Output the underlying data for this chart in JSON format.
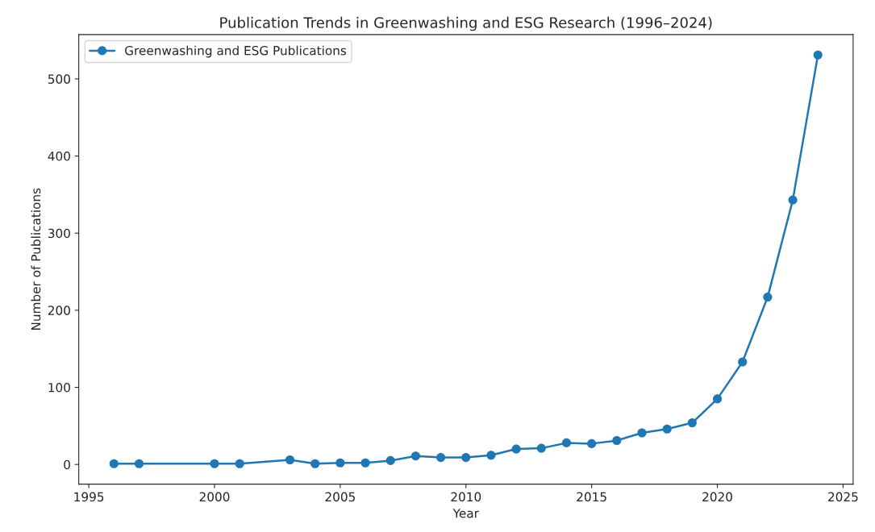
{
  "chart_data": {
    "type": "line",
    "title": "Publication Trends in Greenwashing and ESG Research (1996–2024)",
    "xlabel": "Year",
    "ylabel": "Number of Publications",
    "x": [
      1996,
      1997,
      2000,
      2001,
      2003,
      2004,
      2005,
      2006,
      2007,
      2008,
      2009,
      2010,
      2011,
      2012,
      2013,
      2014,
      2015,
      2016,
      2017,
      2018,
      2019,
      2020,
      2021,
      2022,
      2023,
      2024
    ],
    "series": [
      {
        "name": "Greenwashing and ESG Publications",
        "color": "#1f77b4",
        "values": [
          1,
          1,
          1,
          1,
          6,
          1,
          2,
          2,
          5,
          11,
          9,
          9,
          12,
          20,
          21,
          28,
          27,
          31,
          41,
          46,
          54,
          85,
          133,
          217,
          343,
          531
        ]
      }
    ],
    "xlim": [
      1994.6,
      2025.4
    ],
    "ylim": [
      -25.5,
      557.5
    ],
    "xticks": [
      1995,
      2000,
      2005,
      2010,
      2015,
      2020,
      2025
    ],
    "yticks": [
      0,
      100,
      200,
      300,
      400,
      500
    ],
    "marker": "circle",
    "line_style": "solid",
    "legend": "top left",
    "grid": false
  }
}
